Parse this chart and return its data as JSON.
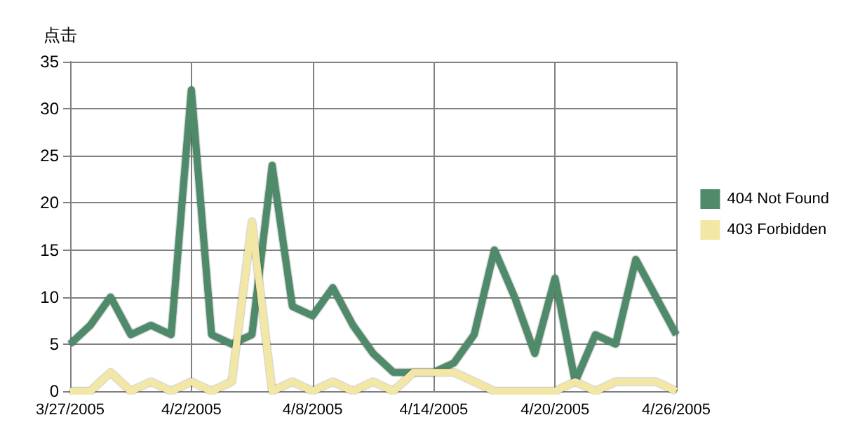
{
  "chart_data": {
    "type": "line",
    "ylabel": "点击",
    "categories": [
      "3/27/2005",
      null,
      null,
      null,
      null,
      null,
      "4/2/2005",
      null,
      null,
      null,
      null,
      null,
      "4/8/2005",
      null,
      null,
      null,
      null,
      null,
      "4/14/2005",
      null,
      null,
      null,
      null,
      null,
      "4/20/2005",
      null,
      null,
      null,
      null,
      null,
      "4/26/2005"
    ],
    "series": [
      {
        "name": "404 Not Found",
        "color": "#4f8a6b",
        "values": [
          5,
          7,
          10,
          6,
          7,
          6,
          32,
          6,
          5,
          6,
          24,
          9,
          8,
          11,
          7,
          4,
          2,
          2,
          2,
          3,
          6,
          15,
          10,
          4,
          12,
          1,
          6,
          5,
          14,
          10,
          6
        ]
      },
      {
        "name": "403 Forbidden",
        "color": "#f3e7a6",
        "values": [
          0,
          0,
          2,
          0,
          1,
          0,
          1,
          0,
          1,
          18,
          0,
          1,
          0,
          1,
          0,
          1,
          0,
          2,
          2,
          2,
          1,
          0,
          0,
          0,
          0,
          1,
          0,
          1,
          1,
          1,
          0
        ]
      }
    ],
    "ylim": [
      0,
      35
    ],
    "yticks": [
      0,
      5,
      10,
      15,
      20,
      25,
      30,
      35
    ],
    "grid": true,
    "legend": "right",
    "marker": "none",
    "line_style": "solid"
  }
}
